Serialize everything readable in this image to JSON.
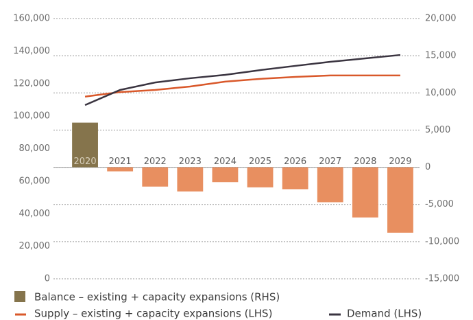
{
  "chart_data": {
    "type": "bar_line",
    "categories": [
      "2020",
      "2021",
      "2022",
      "2023",
      "2024",
      "2025",
      "2026",
      "2027",
      "2028",
      "2029"
    ],
    "series": [
      {
        "name": "Balance – existing + capacity expansions (RHS)",
        "color": "#85744c",
        "axis": "y2",
        "colors": [
          "#85744c",
          "#e88f60",
          "#e88f60",
          "#e88f60",
          "#e88f60",
          "#e88f60",
          "#e88f60",
          "#e88f60",
          "#e88f60",
          "#e88f60"
        ],
        "values": [
          6000,
          -550,
          -2600,
          -3250,
          -2000,
          -2700,
          -2950,
          -4700,
          -6750,
          -8800
        ]
      },
      {
        "name": "Supply – existing + capacity expansions (LHS)",
        "color": "#d9582a",
        "axis": "y",
        "values": [
          112000,
          114800,
          116100,
          118200,
          121200,
          122900,
          124100,
          125000,
          125000,
          125000
        ]
      },
      {
        "name": "Demand (LHS)",
        "color": "#3a3440",
        "axis": "y",
        "values": [
          106800,
          116100,
          120700,
          123300,
          125400,
          128300,
          130900,
          133400,
          135500,
          137600
        ]
      }
    ],
    "ylim": [
      0,
      160000
    ],
    "yticks": [
      0,
      {
        "value": 20000,
        "label": "20,000"
      },
      {
        "value": 40000,
        "label": "40,000"
      },
      {
        "value": 60000,
        "label": "60,000"
      },
      {
        "value": 80000,
        "label": "80,000"
      },
      {
        "value": 100000,
        "label": "100,000"
      },
      {
        "value": 120000,
        "label": "120,000"
      },
      {
        "value": 140000,
        "label": "140,000"
      },
      {
        "value": 160000,
        "label": "160,000"
      }
    ],
    "y2lim": [
      -15000,
      20000
    ],
    "y2ticks": [
      {
        "value": -15000,
        "label": "-15,000"
      },
      {
        "value": -10000,
        "label": "-10,000"
      },
      {
        "value": -5000,
        "label": "-5,000"
      },
      0,
      {
        "value": 5000,
        "label": "5,000"
      },
      {
        "value": 10000,
        "label": "10,000"
      },
      {
        "value": 15000,
        "label": "15,000"
      },
      {
        "value": 20000,
        "label": "20,000"
      }
    ],
    "grid": true
  }
}
